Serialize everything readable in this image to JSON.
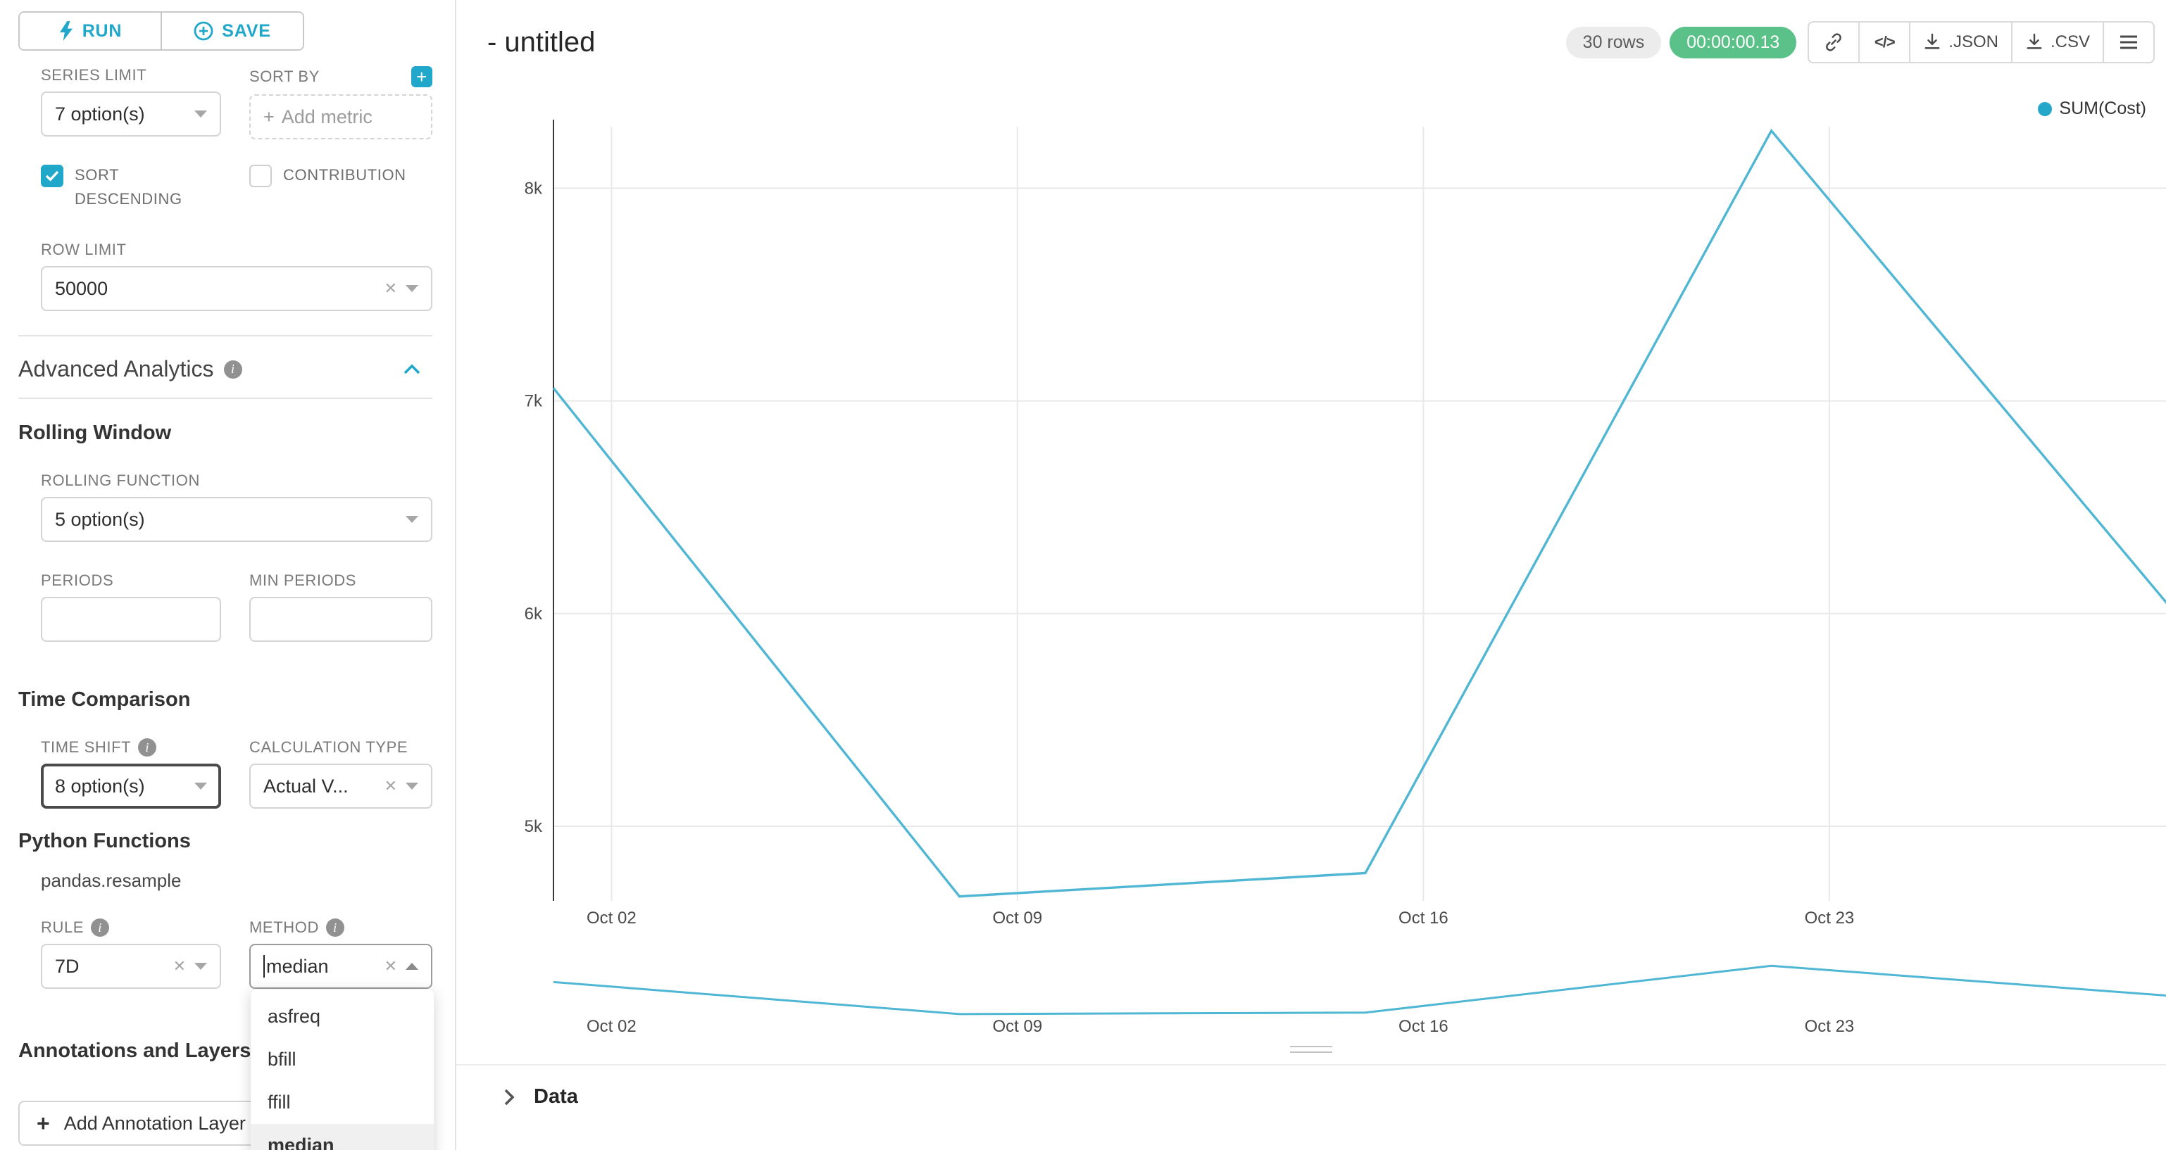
{
  "colors": {
    "primary": "#20a7c9",
    "line": "#4fb6d4",
    "legend_dot": "#24a7c9",
    "timer_green": "#5ac189"
  },
  "toolbar": {
    "run": "RUN",
    "save": "SAVE"
  },
  "controls": {
    "series_limit_label": "SERIES LIMIT",
    "series_limit_value": "7 option(s)",
    "sort_by_label": "SORT BY",
    "sort_by_placeholder": "Add metric",
    "sort_descending_label": "SORT DESCENDING",
    "contribution_label": "CONTRIBUTION",
    "row_limit_label": "ROW LIMIT",
    "row_limit_value": "50000",
    "advanced_analytics_title": "Advanced Analytics",
    "rolling_window_title": "Rolling Window",
    "rolling_function_label": "ROLLING FUNCTION",
    "rolling_function_value": "5 option(s)",
    "periods_label": "PERIODS",
    "min_periods_label": "MIN PERIODS",
    "time_comparison_title": "Time Comparison",
    "time_shift_label": "TIME SHIFT",
    "time_shift_value": "8 option(s)",
    "calculation_type_label": "CALCULATION TYPE",
    "calculation_type_value": "Actual V...",
    "python_functions_title": "Python Functions",
    "python_functions_subtitle": "pandas.resample",
    "rule_label": "RULE",
    "rule_value": "7D",
    "method_label": "METHOD",
    "method_value": "median",
    "method_options": [
      "asfreq",
      "bfill",
      "ffill",
      "median"
    ],
    "method_selected": "median",
    "annotations_title": "Annotations and Layers",
    "add_annotation_label": "Add Annotation Layer"
  },
  "header": {
    "title": "- untitled",
    "rows_badge": "30 rows",
    "timer": "00:00:00.13",
    "json_label": ".JSON",
    "csv_label": ".CSV"
  },
  "footer": {
    "data_label": "Data"
  },
  "chart_data": {
    "type": "line",
    "title": "- untitled",
    "legend": [
      "SUM(Cost)"
    ],
    "legend_position": "top-right",
    "grid": true,
    "line_color": "#4fb6d4",
    "series": [
      {
        "name": "SUM(Cost)",
        "x_days": [
          1,
          8,
          15,
          22,
          29
        ],
        "x_dates": [
          "Oct 01",
          "Oct 08",
          "Oct 15",
          "Oct 22",
          "Oct 29"
        ],
        "values": [
          7060,
          4670,
          4780,
          8270,
          5990
        ]
      }
    ],
    "x_ticks": [
      {
        "day": 2,
        "label": "Oct 02"
      },
      {
        "day": 9,
        "label": "Oct 09"
      },
      {
        "day": 16,
        "label": "Oct 16"
      },
      {
        "day": 23,
        "label": "Oct 23"
      }
    ],
    "y_ticks": [
      {
        "value": 5000,
        "label": "5k"
      },
      {
        "value": 6000,
        "label": "6k"
      },
      {
        "value": 7000,
        "label": "7k"
      },
      {
        "value": 8000,
        "label": "8k"
      }
    ],
    "y_range": [
      4650,
      8330
    ],
    "has_preview_strip": true,
    "preview_x_ticks": [
      "Oct 02",
      "Oct 09",
      "Oct 16",
      "Oct 23"
    ]
  }
}
